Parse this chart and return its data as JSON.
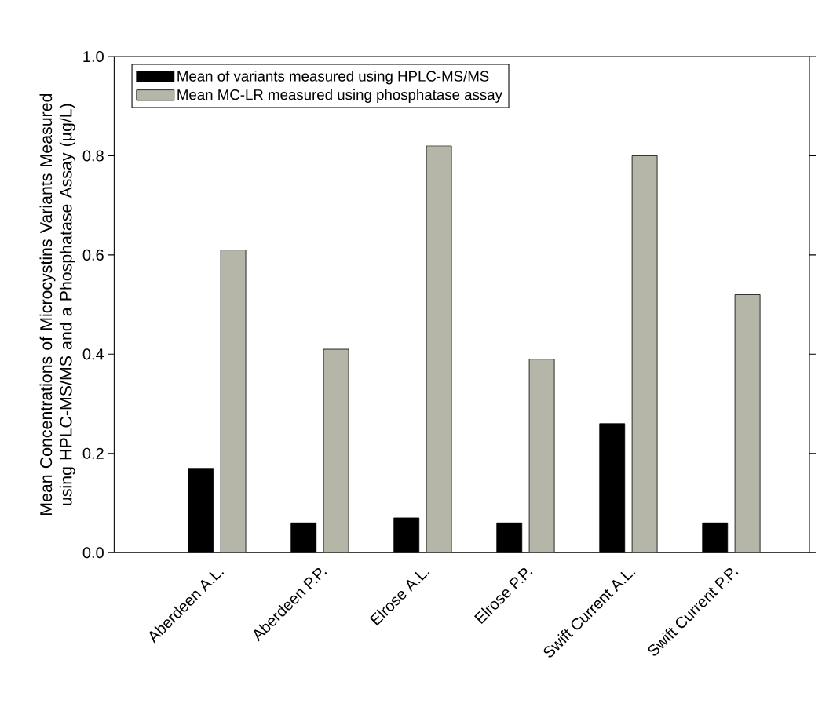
{
  "chart_data": {
    "type": "bar",
    "ylabel": "Mean Concentrations of Microcystins Variants Measured using HPLC-MS/MS and a Phosphatase Assay (µg/L)",
    "categories": [
      "Aberdeen A.L.",
      "Aberdeen P.P.",
      "Elrose A.L.",
      "Elrose P.P.",
      "Swift Current A.L.",
      "Swift Current P.P."
    ],
    "series": [
      {
        "name": "Mean of variants measured using HPLC-MS/MS",
        "color": "#000000",
        "values": [
          0.17,
          0.06,
          0.07,
          0.06,
          0.26,
          0.06
        ]
      },
      {
        "name": "Mean MC-LR measured using phosphatase assay",
        "color": "#b5b5a8",
        "values": [
          0.61,
          0.41,
          0.82,
          0.39,
          0.8,
          0.52
        ]
      }
    ],
    "ylim": [
      0,
      1.0
    ],
    "yticks": [
      {
        "value": 0,
        "label": "0.0"
      },
      {
        "value": 0.2,
        "label": "0.2"
      },
      {
        "value": 0.4,
        "label": "0.4"
      },
      {
        "value": 0.6,
        "label": "0.6"
      },
      {
        "value": 0.8,
        "label": "0.8"
      },
      {
        "value": 1.0,
        "label": "1.0"
      }
    ],
    "grid": false,
    "legend": "top left"
  }
}
